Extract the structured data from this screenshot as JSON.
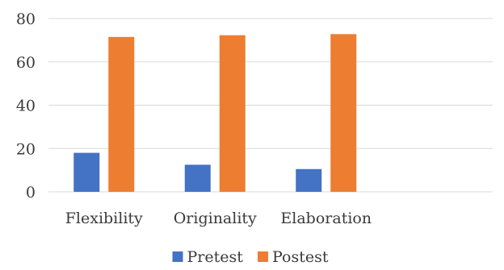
{
  "chart_data": {
    "type": "bar",
    "categories": [
      "Flexibility",
      "Originality",
      "Elaboration",
      ""
    ],
    "series": [
      {
        "name": "Pretest",
        "values": [
          18,
          12.5,
          10.5,
          null
        ],
        "color": "#4472C4"
      },
      {
        "name": "Postest",
        "values": [
          71.5,
          72.3,
          72.8,
          null
        ],
        "color": "#ED7D31"
      }
    ],
    "ylim": [
      0,
      80
    ],
    "yticks": [
      0,
      20,
      40,
      60,
      80
    ],
    "grid": true,
    "legend_position": "bottom",
    "title": "",
    "xlabel": "",
    "ylabel": ""
  }
}
